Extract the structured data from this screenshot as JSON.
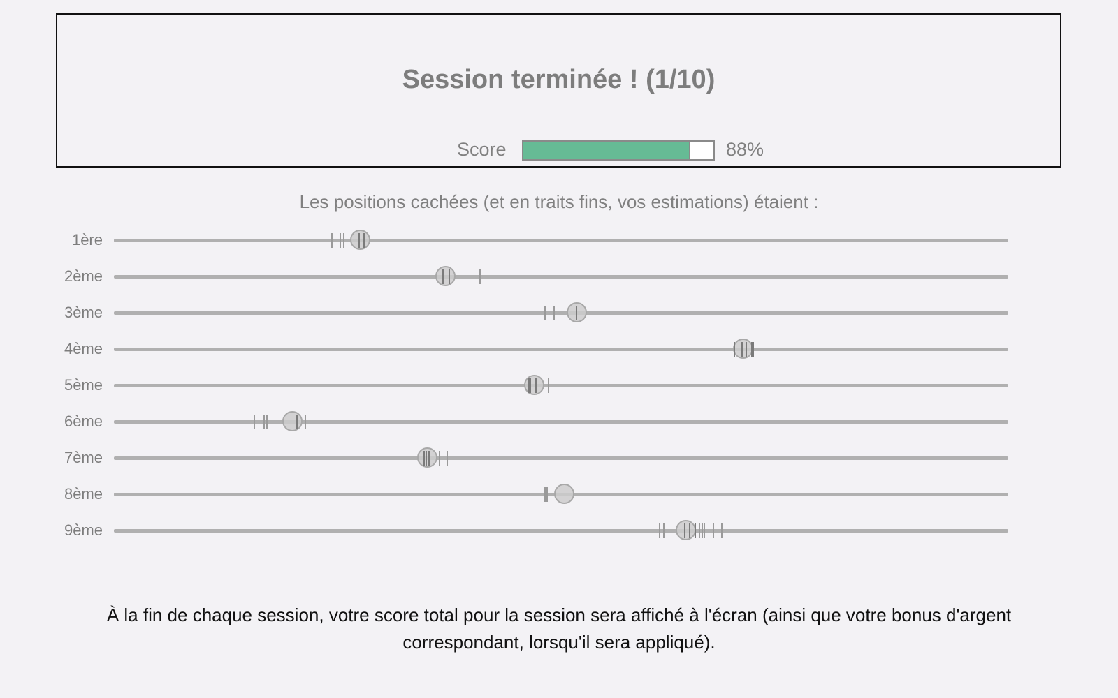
{
  "summary": {
    "title": "Session terminée ! (1/10)",
    "score_label": "Score",
    "score_value": "88%",
    "score_fraction": 0.88,
    "score_fill_color": "#66bb95"
  },
  "positions": {
    "heading": "Les positions cachées (et en traits fins, vos estimations) étaient :",
    "rows": [
      {
        "label": "1ère",
        "hidden_position": 0.276,
        "estimates": [
          0.244,
          0.253,
          0.257,
          0.274,
          0.28
        ]
      },
      {
        "label": "2ème",
        "hidden_position": 0.371,
        "estimates": [
          0.368,
          0.375,
          0.409
        ]
      },
      {
        "label": "3ème",
        "hidden_position": 0.518,
        "estimates": [
          0.482,
          0.492,
          0.517
        ]
      },
      {
        "label": "4ème",
        "hidden_position": 0.704,
        "estimates": [
          0.694,
          0.702,
          0.707,
          0.713,
          0.715
        ]
      },
      {
        "label": "5ème",
        "hidden_position": 0.47,
        "estimates": [
          0.464,
          0.466,
          0.472,
          0.486
        ]
      },
      {
        "label": "6ème",
        "hidden_position": 0.2,
        "estimates": [
          0.157,
          0.168,
          0.171,
          0.205,
          0.214
        ]
      },
      {
        "label": "7ème",
        "hidden_position": 0.351,
        "estimates": [
          0.347,
          0.349,
          0.352,
          0.364,
          0.373
        ]
      },
      {
        "label": "8ème",
        "hidden_position": 0.504,
        "estimates": [
          0.482,
          0.484
        ]
      },
      {
        "label": "9ème",
        "hidden_position": 0.64,
        "estimates": [
          0.61,
          0.615,
          0.638,
          0.644,
          0.65,
          0.655,
          0.658,
          0.66,
          0.67,
          0.68
        ]
      }
    ]
  },
  "footer": {
    "note": "À la fin de chaque session, votre score total pour la session sera affiché à l'écran (ainsi que votre bonus d'argent correspondant, lorsqu'il sera appliqué)."
  }
}
